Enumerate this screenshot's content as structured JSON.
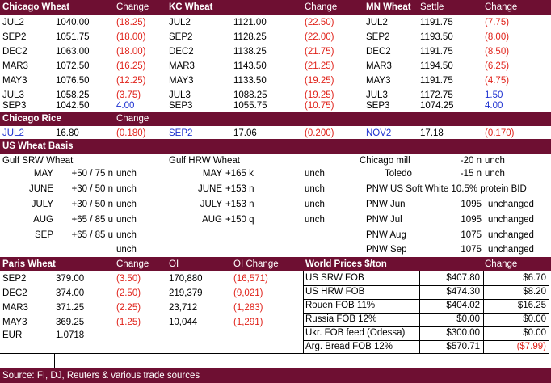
{
  "futures": {
    "headers": {
      "chicago": "Chicago Wheat",
      "chicago_change": "Change",
      "kc": "KC Wheat",
      "kc_change": "Change",
      "mn": "MN Wheat",
      "mn_settle": "Settle",
      "mn_change": "Change"
    },
    "rows": [
      {
        "cm": "JUL2",
        "cp": "1040.00",
        "cc": "(18.25)",
        "km": "JUL2",
        "kp": "1121.00",
        "kc": "(22.50)",
        "mm": "JUL2",
        "mp": "1191.75",
        "mc": "(7.75)"
      },
      {
        "cm": "SEP2",
        "cp": "1051.75",
        "cc": "(18.00)",
        "km": "SEP2",
        "kp": "1128.25",
        "kc": "(22.00)",
        "mm": "SEP2",
        "mp": "1193.50",
        "mc": "(8.00)"
      },
      {
        "cm": "DEC2",
        "cp": "1063.00",
        "cc": "(18.00)",
        "km": "DEC2",
        "kp": "1138.25",
        "kc": "(21.75)",
        "mm": "DEC2",
        "mp": "1191.75",
        "mc": "(8.50)"
      },
      {
        "cm": "MAR3",
        "cp": "1072.50",
        "cc": "(16.25)",
        "km": "MAR3",
        "kp": "1143.50",
        "kc": "(21.25)",
        "mm": "MAR3",
        "mp": "1194.50",
        "mc": "(6.25)"
      },
      {
        "cm": "MAY3",
        "cp": "1076.50",
        "cc": "(12.25)",
        "km": "MAY3",
        "kp": "1133.50",
        "kc": "(19.25)",
        "mm": "MAY3",
        "mp": "1191.75",
        "mc": "(4.75)"
      },
      {
        "cm": "JUL3",
        "cp": "1058.25",
        "cc": "(3.75)",
        "km": "JUL3",
        "kp": "1088.25",
        "kc": "(19.25)",
        "mm": "JUL3",
        "mp": "1172.75",
        "mc": "1.50"
      },
      {
        "cm": "SEP3",
        "cp": "1042.50",
        "cc": "4.00",
        "km": "SEP3",
        "kp": "1055.75",
        "kc": "(10.75)",
        "mm": "SEP3",
        "mp": "1074.25",
        "mc": "4.00"
      }
    ]
  },
  "rice": {
    "title": "Chicago Rice",
    "change": "Change",
    "m1": "JUL2",
    "p1": "16.80",
    "c1": "(0.180)",
    "m2": "SEP2",
    "p2": "17.06",
    "c2": "(0.200)",
    "m3": "NOV2",
    "p3": "17.18",
    "c3": "(0.170)"
  },
  "basis": {
    "title": "US Wheat Basis",
    "srw_title": "Gulf SRW Wheat",
    "hrw_title": "Gulf HRW Wheat",
    "srw": [
      {
        "m": "MAY",
        "v": "+50 / 75 n",
        "c": "unch"
      },
      {
        "m": "JUNE",
        "v": "+30 / 50 n",
        "c": "unch"
      },
      {
        "m": "JULY",
        "v": "+30 / 50 n",
        "c": "unch"
      },
      {
        "m": "AUG",
        "v": "+65 / 85 u",
        "c": "unch"
      },
      {
        "m": "SEP",
        "v": "+65 / 85 u",
        "c": "unch"
      }
    ],
    "srw_extra": "unch",
    "hrw": [
      {
        "m": "MAY",
        "v": "+165 k",
        "c": "unch"
      },
      {
        "m": "JUNE",
        "v": "+153 n",
        "c": "unch"
      },
      {
        "m": "JULY",
        "v": "+153 n",
        "c": "unch"
      },
      {
        "m": "AUG",
        "v": "+150 q",
        "c": "unch"
      }
    ],
    "chicago_mill": {
      "label": "Chicago mill",
      "v": "-20 n",
      "c": "unch"
    },
    "toledo": {
      "label": "Toledo",
      "v": "-15 n",
      "c": "unch"
    },
    "pnw_title": "PNW US Soft White 10.5% protein BID",
    "pnw": [
      {
        "label": "PNW Jun",
        "v": "1095",
        "c": "unchanged"
      },
      {
        "label": "PNW Jul",
        "v": "1095",
        "c": "unchanged"
      },
      {
        "label": "PNW Aug",
        "v": "1075",
        "c": "unchanged"
      },
      {
        "label": "PNW Sep",
        "v": "1075",
        "c": "unchanged"
      }
    ]
  },
  "paris": {
    "headers": {
      "title": "Paris Wheat",
      "change": "Change",
      "oi": "OI",
      "oi_change": "OI Change"
    },
    "rows": [
      {
        "m": "SEP2",
        "p": "379.00",
        "c": "(3.50)",
        "oi": "170,880",
        "oic": "(16,571)"
      },
      {
        "m": "DEC2",
        "p": "374.00",
        "c": "(2.50)",
        "oi": "219,379",
        "oic": "(9,021)"
      },
      {
        "m": "MAR3",
        "p": "371.25",
        "c": "(2.25)",
        "oi": "23,712",
        "oic": "(1,283)"
      },
      {
        "m": "MAY3",
        "p": "369.25",
        "c": "(1.25)",
        "oi": "10,044",
        "oic": "(1,291)"
      }
    ],
    "eur_label": "EUR",
    "eur_value": "1.0718"
  },
  "world": {
    "title": "World Prices $/ton",
    "change": "Change",
    "rows": [
      {
        "label": "US SRW FOB",
        "p": "$407.80",
        "c": "$6.70"
      },
      {
        "label": "US HRW FOB",
        "p": "$474.30",
        "c": "$8.20"
      },
      {
        "label": "Rouen FOB 11%",
        "p": "$404.02",
        "c": "$16.25"
      },
      {
        "label": "Russia FOB 12%",
        "p": "$0.00",
        "c": "$0.00"
      },
      {
        "label": "Ukr. FOB feed (Odessa)",
        "p": "$300.00",
        "c": "$0.00"
      },
      {
        "label": "Arg. Bread FOB 12%",
        "p": "$570.71",
        "c": "($7.99)"
      }
    ]
  },
  "source": "Source: FI, DJ, Reuters & various trade sources",
  "colors": {
    "band": "#6e0f32",
    "negative": "#e0231b",
    "blue": "#1b2fd0"
  }
}
